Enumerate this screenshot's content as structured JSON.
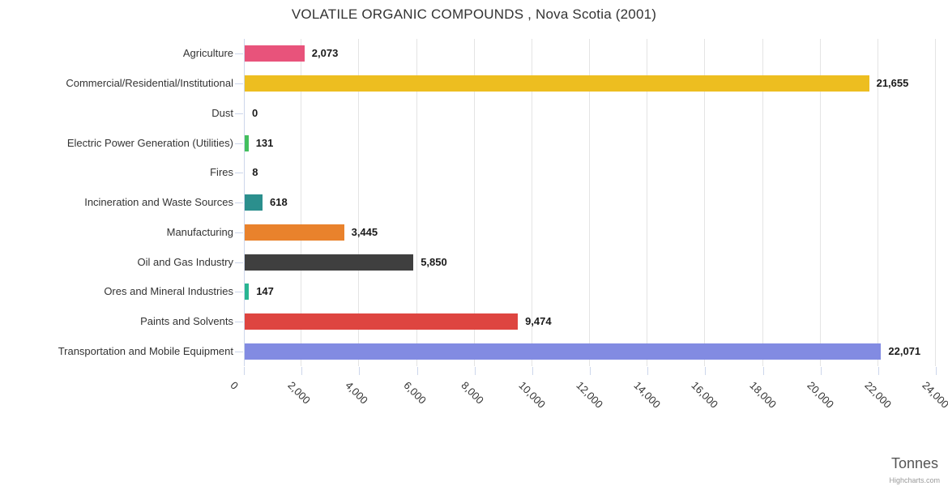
{
  "title": "VOLATILE ORGANIC COMPOUNDS , Nova Scotia (2001)",
  "credits": "Highcharts.com",
  "chart_data": {
    "type": "bar",
    "title": "VOLATILE ORGANIC COMPOUNDS , Nova Scotia (2001)",
    "xlabel": "Tonnes",
    "ylabel": "",
    "categories": [
      "Agriculture",
      "Commercial/Residential/Institutional",
      "Dust",
      "Electric Power Generation (Utilities)",
      "Fires",
      "Incineration and Waste Sources",
      "Manufacturing",
      "Oil and Gas Industry",
      "Ores and Mineral Industries",
      "Paints and Solvents",
      "Transportation and Mobile Equipment"
    ],
    "values": [
      2073,
      21655,
      0,
      131,
      8,
      618,
      3445,
      5850,
      147,
      9474,
      22071
    ],
    "value_labels": [
      "2,073",
      "21,655",
      "0",
      "131",
      "8",
      "618",
      "3,445",
      "5,850",
      "147",
      "9,474",
      "22,071"
    ],
    "bar_colors": [
      "#e8537b",
      "#edbe20",
      "#9b9b9b",
      "#43bf5e",
      "#9b9b9b",
      "#2b8f8d",
      "#e9822c",
      "#3f3f3f",
      "#29b592",
      "#de4540",
      "#828be2"
    ],
    "xlim": [
      0,
      24000
    ],
    "tick_interval": 2000,
    "tick_labels": [
      "0",
      "2,000",
      "4,000",
      "6,000",
      "8,000",
      "10,000",
      "12,000",
      "14,000",
      "16,000",
      "18,000",
      "20,000",
      "22,000",
      "24,000"
    ],
    "grid": true,
    "legend": false,
    "colors": {
      "grid": "#e4e4e4",
      "axis": "#ccd6eb",
      "title_text": "#333333",
      "category_text": "#333333",
      "value_text": "#1a1a1a",
      "axis_title_text": "#555555",
      "credits_text": "#999999"
    }
  }
}
